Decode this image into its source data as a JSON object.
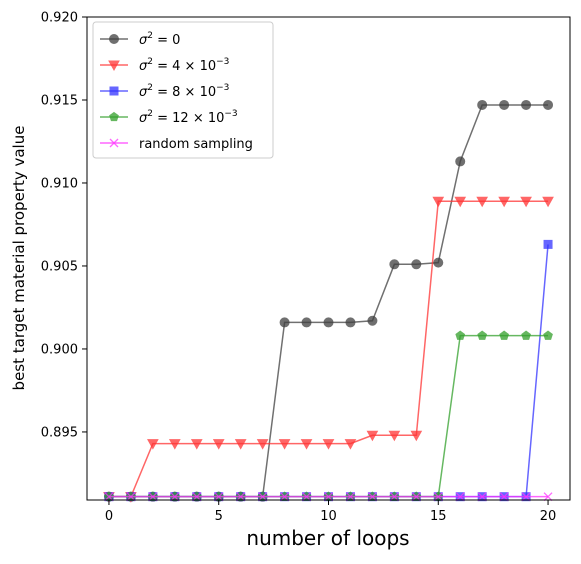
{
  "chart_data": {
    "type": "line",
    "title": "",
    "xlabel": "number of loops",
    "ylabel": "best target material property value",
    "xlim": [
      -1,
      21
    ],
    "ylim": [
      0.8909,
      0.92
    ],
    "x_ticks": [
      "0",
      "5",
      "10",
      "15",
      "20"
    ],
    "x_tick_values": [
      0,
      5,
      10,
      15,
      20
    ],
    "y_ticks": [
      "0.895",
      "0.900",
      "0.905",
      "0.910",
      "0.915",
      "0.920"
    ],
    "y_tick_values": [
      0.895,
      0.9,
      0.905,
      0.91,
      0.915,
      0.92
    ],
    "grid": false,
    "legend_position": "top-left",
    "x": [
      0,
      1,
      2,
      3,
      4,
      5,
      6,
      7,
      8,
      9,
      10,
      11,
      12,
      13,
      14,
      15,
      16,
      17,
      18,
      19,
      20
    ],
    "series": [
      {
        "name_base": "σ",
        "name_rest": " = 0",
        "name_exp": "",
        "color": "#404040",
        "marker": "circle",
        "values": [
          0.8911,
          0.8911,
          0.8911,
          0.8911,
          0.8911,
          0.8911,
          0.8911,
          0.8911,
          0.9016,
          0.9016,
          0.9016,
          0.9016,
          0.9017,
          0.9051,
          0.9051,
          0.9052,
          0.9113,
          0.9147,
          0.9147,
          0.9147,
          0.9147
        ]
      },
      {
        "name_base": "σ",
        "name_rest": " = 4 × 10",
        "name_exp": "−3",
        "color": "#ff3333",
        "marker": "triangle-down",
        "values": [
          0.8911,
          0.8911,
          0.8943,
          0.8943,
          0.8943,
          0.8943,
          0.8943,
          0.8943,
          0.8943,
          0.8943,
          0.8943,
          0.8943,
          0.8948,
          0.8948,
          0.8948,
          0.9089,
          0.9089,
          0.9089,
          0.9089,
          0.9089,
          0.9089
        ]
      },
      {
        "name_base": "σ",
        "name_rest": " = 8 × 10",
        "name_exp": "−3",
        "color": "#3333ff",
        "marker": "square",
        "values": [
          0.8911,
          0.8911,
          0.8911,
          0.8911,
          0.8911,
          0.8911,
          0.8911,
          0.8911,
          0.8911,
          0.8911,
          0.8911,
          0.8911,
          0.8911,
          0.8911,
          0.8911,
          0.8911,
          0.8911,
          0.8911,
          0.8911,
          0.8911,
          0.9063
        ]
      },
      {
        "name_base": "σ",
        "name_rest": " = 12 × 10",
        "name_exp": "−3",
        "color": "#33a02c",
        "marker": "pentagon",
        "values": [
          0.8911,
          0.8911,
          0.8911,
          0.8911,
          0.8911,
          0.8911,
          0.8911,
          0.8911,
          0.8911,
          0.8911,
          0.8911,
          0.8911,
          0.8911,
          0.8911,
          0.8911,
          0.8911,
          0.9008,
          0.9008,
          0.9008,
          0.9008,
          0.9008
        ]
      },
      {
        "name_base": "random sampling",
        "name_rest": "",
        "name_exp": "",
        "color": "#ff33ff",
        "marker": "x",
        "values": [
          0.8911,
          0.8911,
          0.8911,
          0.8911,
          0.8911,
          0.8911,
          0.8911,
          0.8911,
          0.8911,
          0.8911,
          0.8911,
          0.8911,
          0.8911,
          0.8911,
          0.8911,
          0.8911,
          0.8911,
          0.8911,
          0.8911,
          0.8911,
          0.8911
        ]
      }
    ]
  }
}
